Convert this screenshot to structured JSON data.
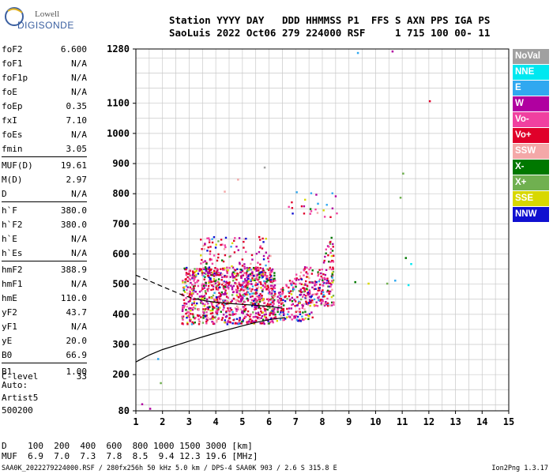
{
  "logo": {
    "line1": "Lowell",
    "line2": "DIGISONDE"
  },
  "header": {
    "line1": "Station YYYY DAY   DDD HHMMSS P1  FFS S AXN PPS IGA PS",
    "line2": "SaoLuis 2022 Oct06 279 224000 RSF     1 715 100 00- 11"
  },
  "parameters": [
    {
      "name": "foF2",
      "value": "6.600"
    },
    {
      "name": "foF1",
      "value": "N/A"
    },
    {
      "name": "foF1p",
      "value": "N/A"
    },
    {
      "name": "foE",
      "value": "N/A"
    },
    {
      "name": "foEp",
      "value": "0.35"
    },
    {
      "name": "fxI",
      "value": "7.10"
    },
    {
      "name": "foEs",
      "value": "N/A"
    },
    {
      "name": "fmin",
      "value": "3.05"
    },
    {
      "name": "MUF(D)",
      "value": "19.61"
    },
    {
      "name": "M(D)",
      "value": "2.97"
    },
    {
      "name": "D",
      "value": "N/A"
    },
    {
      "name": "h`F",
      "value": "380.0"
    },
    {
      "name": "h`F2",
      "value": "380.0"
    },
    {
      "name": "h`E",
      "value": "N/A"
    },
    {
      "name": "h`Es",
      "value": "N/A"
    },
    {
      "name": "hmF2",
      "value": "388.9"
    },
    {
      "name": "hmF1",
      "value": "N/A"
    },
    {
      "name": "hmE",
      "value": "110.0"
    },
    {
      "name": "yF2",
      "value": "43.7"
    },
    {
      "name": "yF1",
      "value": "N/A"
    },
    {
      "name": "yE",
      "value": "20.0"
    },
    {
      "name": "B0",
      "value": "66.9"
    },
    {
      "name": "B1",
      "value": "1.00"
    },
    {
      "name": "C-level",
      "value": "33"
    }
  ],
  "auto": {
    "line1": "Auto:",
    "line2": "Artist5",
    "line3": "500200"
  },
  "legend": [
    {
      "label": "NoVal",
      "color": "#a0a0a0"
    },
    {
      "label": "NNE",
      "color": "#00e8f0"
    },
    {
      "label": "E",
      "color": "#30a8f0"
    },
    {
      "label": "W",
      "color": "#b000a0"
    },
    {
      "label": "Vo-",
      "color": "#f040a0"
    },
    {
      "label": "Vo+",
      "color": "#e0002a"
    },
    {
      "label": "SSW",
      "color": "#f4a8a8"
    },
    {
      "label": "X-",
      "color": "#007800"
    },
    {
      "label": "X+",
      "color": "#70b050"
    },
    {
      "label": "SSE",
      "color": "#d8d800"
    },
    {
      "label": "NNW",
      "color": "#1010d0"
    }
  ],
  "muf_table": {
    "line1": "D    100  200  400  600  800 1000 1500 3000 [km]",
    "line2": "MUF  6.9  7.0  7.3  7.8  8.5  9.4 12.3 19.6 [MHz]"
  },
  "footer": {
    "left": "SAA0K_2022279224000.RSF / 280fx256h 50 kHz 5.0 km / DPS-4 SAA0K 903 / 2.6 S 315.8 E",
    "right": "Ion2Png 1.3.17"
  },
  "chart_data": {
    "type": "scatter",
    "title": "",
    "xlabel": "",
    "ylabel": "",
    "xlim": [
      1,
      15
    ],
    "ylim": [
      80,
      1280
    ],
    "x_ticks": [
      1,
      2,
      3,
      4,
      5,
      6,
      7,
      8,
      9,
      10,
      11,
      12,
      13,
      14,
      15
    ],
    "y_ticks": [
      80,
      200,
      300,
      400,
      500,
      600,
      700,
      800,
      900,
      1000,
      1100,
      1280
    ],
    "grid": true,
    "legend_position": "right",
    "profile_curve": {
      "name": "electron density profile",
      "x": [
        1.0,
        1.5,
        2.0,
        2.5,
        3.0,
        3.5,
        4.0,
        4.5,
        5.0,
        5.5,
        6.0,
        6.4,
        6.6
      ],
      "y": [
        242,
        265,
        283,
        297,
        311,
        325,
        338,
        350,
        362,
        373,
        382,
        387,
        389
      ]
    },
    "trace_curve": {
      "name": "fitted trace",
      "x": [
        1.0,
        2.0,
        2.8,
        3.2,
        3.6,
        4.0,
        4.5,
        5.0,
        5.5,
        6.0,
        6.5
      ],
      "y": [
        530,
        492,
        462,
        452,
        445,
        440,
        436,
        433,
        430,
        426,
        420
      ]
    },
    "echo_regions": [
      {
        "name": "main F-trace",
        "x": [
          2.7,
          6.2
        ],
        "y": [
          370,
          560
        ],
        "density": 1.0
      },
      {
        "name": "upper F-trace",
        "x": [
          3.4,
          6.1
        ],
        "y": [
          480,
          660
        ],
        "density": 0.45
      },
      {
        "name": "mid rise",
        "x": [
          6.0,
          7.6
        ],
        "y": [
          380,
          560
        ],
        "density": 0.8
      },
      {
        "name": "high rise",
        "x": [
          7.2,
          8.4
        ],
        "y": [
          430,
          680
        ],
        "density": 0.75
      },
      {
        "name": "scattered high",
        "x": [
          6.7,
          8.6
        ],
        "y": [
          720,
          810
        ],
        "density": 0.1
      }
    ],
    "isolated_points": [
      {
        "x": 1.2,
        "y": 105,
        "color": "#b000a0"
      },
      {
        "x": 1.5,
        "y": 90,
        "color": "#b000a0"
      },
      {
        "x": 1.8,
        "y": 255,
        "color": "#30a8f0"
      },
      {
        "x": 1.9,
        "y": 175,
        "color": "#70b050"
      },
      {
        "x": 9.3,
        "y": 1270,
        "color": "#30a8f0"
      },
      {
        "x": 10.6,
        "y": 1275,
        "color": "#b000a0"
      },
      {
        "x": 12.0,
        "y": 1110,
        "color": "#e0002a"
      },
      {
        "x": 11.0,
        "y": 870,
        "color": "#70b050"
      },
      {
        "x": 11.1,
        "y": 590,
        "color": "#007800"
      },
      {
        "x": 11.3,
        "y": 570,
        "color": "#00e8f0"
      },
      {
        "x": 10.4,
        "y": 505,
        "color": "#70b050"
      },
      {
        "x": 10.7,
        "y": 515,
        "color": "#30a8f0"
      },
      {
        "x": 11.2,
        "y": 500,
        "color": "#00e8f0"
      },
      {
        "x": 9.7,
        "y": 505,
        "color": "#d8d800"
      },
      {
        "x": 9.2,
        "y": 510,
        "color": "#007800"
      },
      {
        "x": 10.9,
        "y": 790,
        "color": "#70b050"
      },
      {
        "x": 5.8,
        "y": 890,
        "color": "#a0a0a0"
      },
      {
        "x": 7.8,
        "y": 770,
        "color": "#30a8f0"
      },
      {
        "x": 4.3,
        "y": 810,
        "color": "#f4a8a8"
      },
      {
        "x": 4.8,
        "y": 850,
        "color": "#f4a8a8"
      }
    ]
  }
}
